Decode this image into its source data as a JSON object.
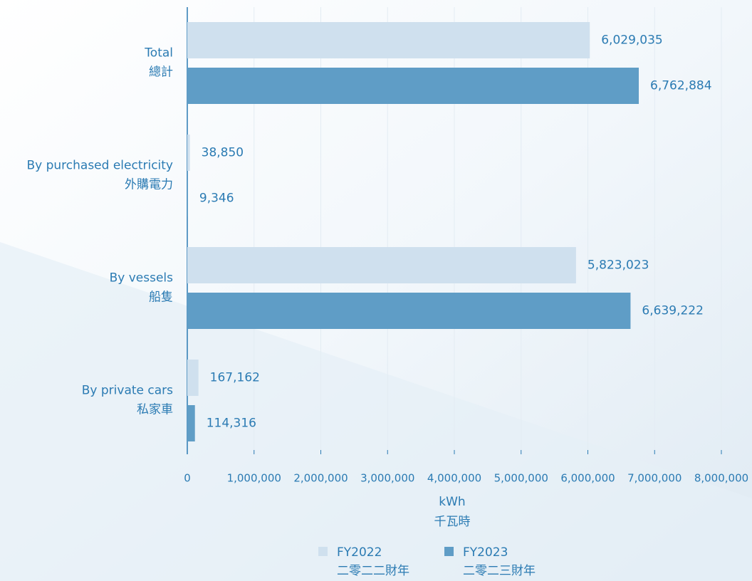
{
  "chart_data": {
    "type": "bar",
    "orientation": "horizontal",
    "categories": [
      [
        "Total",
        "總計"
      ],
      [
        "By purchased electricity",
        "外購電力"
      ],
      [
        "By vessels",
        "船隻"
      ],
      [
        "By private cars",
        "私家車"
      ]
    ],
    "series": [
      {
        "name": "FY2022",
        "name_zh": "二零二二財年",
        "color": "#cfe0ee",
        "values": [
          6029035,
          38850,
          5823023,
          167162
        ],
        "value_labels": [
          "6,029,035",
          "38,850",
          "5,823,023",
          "167,162"
        ]
      },
      {
        "name": "FY2023",
        "name_zh": "二零二三財年",
        "color": "#5f9dc6",
        "values": [
          6762884,
          9346,
          6639222,
          114316
        ],
        "value_labels": [
          "6,762,884",
          "9,346",
          "6,639,222",
          "114,316"
        ]
      }
    ],
    "xlabel": "kWh",
    "xlabel_zh": "千瓦時",
    "xlim": [
      0,
      8000000
    ],
    "xticks": [
      0,
      {
        "value": 1000000,
        "label": "1,000,000"
      },
      {
        "value": 2000000,
        "label": "2,000,000"
      },
      {
        "value": 3000000,
        "label": "3,000,000"
      },
      {
        "value": 4000000,
        "label": "4,000,000"
      },
      {
        "value": 5000000,
        "label": "5,000,000"
      },
      {
        "value": 6000000,
        "label": "6,000,000"
      },
      {
        "value": 7000000,
        "label": "7,000,000"
      },
      {
        "value": 8000000,
        "label": "8,000,000"
      }
    ],
    "grid": true
  }
}
